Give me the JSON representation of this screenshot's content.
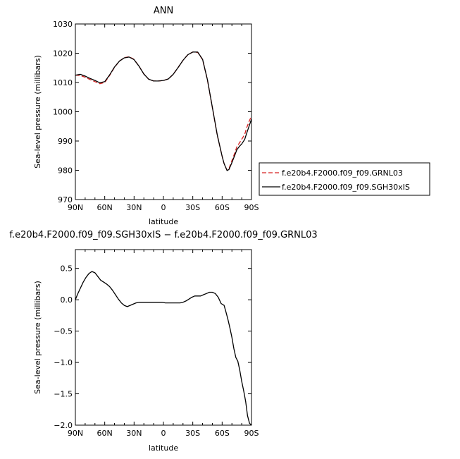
{
  "chart_data": [
    {
      "type": "line",
      "title": "ANN",
      "xlabel": "latitude",
      "ylabel": "Sea-level pressure (millibars)",
      "xlim": [
        90,
        -90
      ],
      "ylim": [
        970,
        1030
      ],
      "x_ticks": [
        90,
        60,
        30,
        0,
        -30,
        -60,
        -90
      ],
      "x_tick_labels": [
        "90N",
        "60N",
        "30N",
        "0",
        "30S",
        "60S",
        "90S"
      ],
      "y_ticks": [
        970,
        980,
        990,
        1000,
        1010,
        1020,
        1030
      ],
      "y_tick_labels": [
        "970",
        "980",
        "990",
        "1000",
        "1010",
        "1020",
        "1030"
      ],
      "legend_position": "right",
      "series": [
        {
          "name": "f.e20b4.F2000.f09_f09.GRNL03",
          "color": "#d62020",
          "dash": "dashed",
          "x": [
            90,
            85,
            80,
            75,
            70,
            65,
            60,
            55,
            50,
            45,
            40,
            35,
            30,
            25,
            20,
            15,
            10,
            5,
            0,
            -5,
            -10,
            -15,
            -20,
            -25,
            -30,
            -35,
            -40,
            -45,
            -50,
            -55,
            -60,
            -62,
            -65,
            -67,
            -70,
            -73,
            -75,
            -78,
            -80,
            -83,
            -85,
            -88,
            -90
          ],
          "y": [
            1012.5,
            1012.4,
            1011.8,
            1011.0,
            1010.3,
            1009.6,
            1010.0,
            1012.4,
            1015.2,
            1017.3,
            1018.5,
            1018.8,
            1017.9,
            1015.6,
            1012.9,
            1011.1,
            1010.5,
            1010.5,
            1010.7,
            1011.2,
            1012.8,
            1015.1,
            1017.6,
            1019.5,
            1020.4,
            1020.3,
            1017.8,
            1010.8,
            1001.5,
            992.0,
            984.8,
            982.3,
            980.0,
            980.6,
            983.3,
            986.0,
            988.0,
            989.5,
            990.6,
            992.2,
            994.5,
            997.0,
            998.5
          ]
        },
        {
          "name": "f.e20b4.F2000.f09_f09.SGH30xIS",
          "color": "#000000",
          "dash": "solid",
          "x": [
            90,
            85,
            80,
            75,
            70,
            65,
            60,
            55,
            50,
            45,
            40,
            35,
            30,
            25,
            20,
            15,
            10,
            5,
            0,
            -5,
            -10,
            -15,
            -20,
            -25,
            -30,
            -35,
            -40,
            -45,
            -50,
            -55,
            -60,
            -62,
            -65,
            -67,
            -70,
            -73,
            -75,
            -78,
            -80,
            -83,
            -85,
            -88,
            -90
          ],
          "y": [
            1012.5,
            1012.8,
            1012.2,
            1011.4,
            1010.7,
            1009.9,
            1010.3,
            1012.6,
            1015.3,
            1017.3,
            1018.4,
            1018.7,
            1017.8,
            1015.6,
            1012.9,
            1011.1,
            1010.5,
            1010.5,
            1010.7,
            1011.2,
            1012.8,
            1015.1,
            1017.6,
            1019.5,
            1020.4,
            1020.4,
            1017.9,
            1010.9,
            1001.6,
            992.1,
            984.8,
            982.3,
            979.9,
            980.3,
            982.6,
            985.2,
            987.0,
            988.3,
            989.0,
            990.5,
            992.6,
            995.5,
            997.5
          ]
        }
      ]
    },
    {
      "type": "line",
      "title": "f.e20b4.F2000.f09_f09.SGH30xIS − f.e20b4.F2000.f09_f09.GRNL03",
      "xlabel": "latitude",
      "ylabel": "Sea-level pressure (millibars)",
      "xlim": [
        90,
        -90
      ],
      "ylim": [
        -2.0,
        0.8
      ],
      "x_ticks": [
        90,
        60,
        30,
        0,
        -30,
        -60,
        -90
      ],
      "x_tick_labels": [
        "90N",
        "60N",
        "30N",
        "0",
        "30S",
        "60S",
        "90S"
      ],
      "y_ticks": [
        0.5,
        0.0,
        -0.5,
        -1.0,
        -1.5,
        -2.0
      ],
      "y_tick_labels": [
        "0.5",
        "0.0",
        "−0.5",
        "−1.0",
        "−1.5",
        "−2.0"
      ],
      "series": [
        {
          "color": "#000000",
          "dash": "solid",
          "x": [
            90,
            88,
            85,
            82,
            79,
            76,
            73,
            70,
            67,
            64,
            61,
            58,
            55,
            52,
            49,
            46,
            43,
            40,
            37,
            34,
            31,
            28,
            25,
            22,
            19,
            16,
            13,
            10,
            7,
            4,
            1,
            -2,
            -5,
            -8,
            -11,
            -14,
            -17,
            -20,
            -23,
            -26,
            -29,
            -32,
            -35,
            -38,
            -41,
            -44,
            -47,
            -50,
            -53,
            -56,
            -59,
            -62,
            -64,
            -66,
            -68,
            -70,
            -72,
            -74,
            -76,
            -78,
            -80,
            -82,
            -84,
            -86,
            -88,
            -90
          ],
          "y": [
            0.0,
            0.08,
            0.18,
            0.28,
            0.36,
            0.42,
            0.45,
            0.43,
            0.37,
            0.31,
            0.28,
            0.25,
            0.21,
            0.15,
            0.08,
            0.01,
            -0.05,
            -0.09,
            -0.11,
            -0.09,
            -0.07,
            -0.05,
            -0.04,
            -0.04,
            -0.04,
            -0.04,
            -0.04,
            -0.04,
            -0.04,
            -0.04,
            -0.04,
            -0.05,
            -0.05,
            -0.05,
            -0.05,
            -0.05,
            -0.05,
            -0.04,
            -0.02,
            0.01,
            0.04,
            0.06,
            0.06,
            0.06,
            0.08,
            0.1,
            0.12,
            0.12,
            0.1,
            0.04,
            -0.06,
            -0.09,
            -0.2,
            -0.32,
            -0.45,
            -0.6,
            -0.78,
            -0.92,
            -0.98,
            -1.12,
            -1.3,
            -1.45,
            -1.62,
            -1.85,
            -1.97,
            -2.0
          ]
        }
      ]
    }
  ]
}
